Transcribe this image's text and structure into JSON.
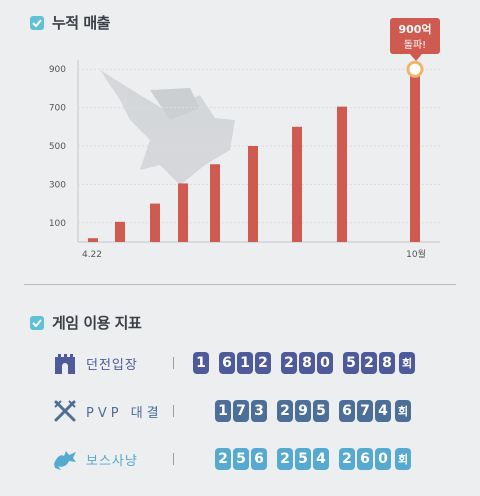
{
  "revenue": {
    "title": "누적 매출",
    "callout_line1": "900억",
    "callout_line2": "돌파!"
  },
  "chart_data": {
    "type": "bar",
    "y_ticks": [
      "100",
      "300",
      "500",
      "700",
      "900"
    ],
    "x_start_label": "4.22",
    "x_end_label": "10월",
    "values": [
      20,
      105,
      200,
      305,
      405,
      500,
      600,
      705,
      900
    ],
    "ylim": [
      0,
      1000
    ],
    "bar_color": "#cf5b50"
  },
  "usage": {
    "title": "게임 이용 지표",
    "rows": [
      {
        "label": "던전입장",
        "icon": "castle-icon",
        "number": "1612280528",
        "unit": "회",
        "color": "#4f5a9b"
      },
      {
        "label": "PVP 대결",
        "icon": "crossed-swords-icon",
        "number": "173295674",
        "unit": "회",
        "color": "#4d6f97"
      },
      {
        "label": "보스사냥",
        "icon": "dragon-icon",
        "number": "256254260",
        "unit": "회",
        "color": "#56aacf"
      }
    ]
  }
}
